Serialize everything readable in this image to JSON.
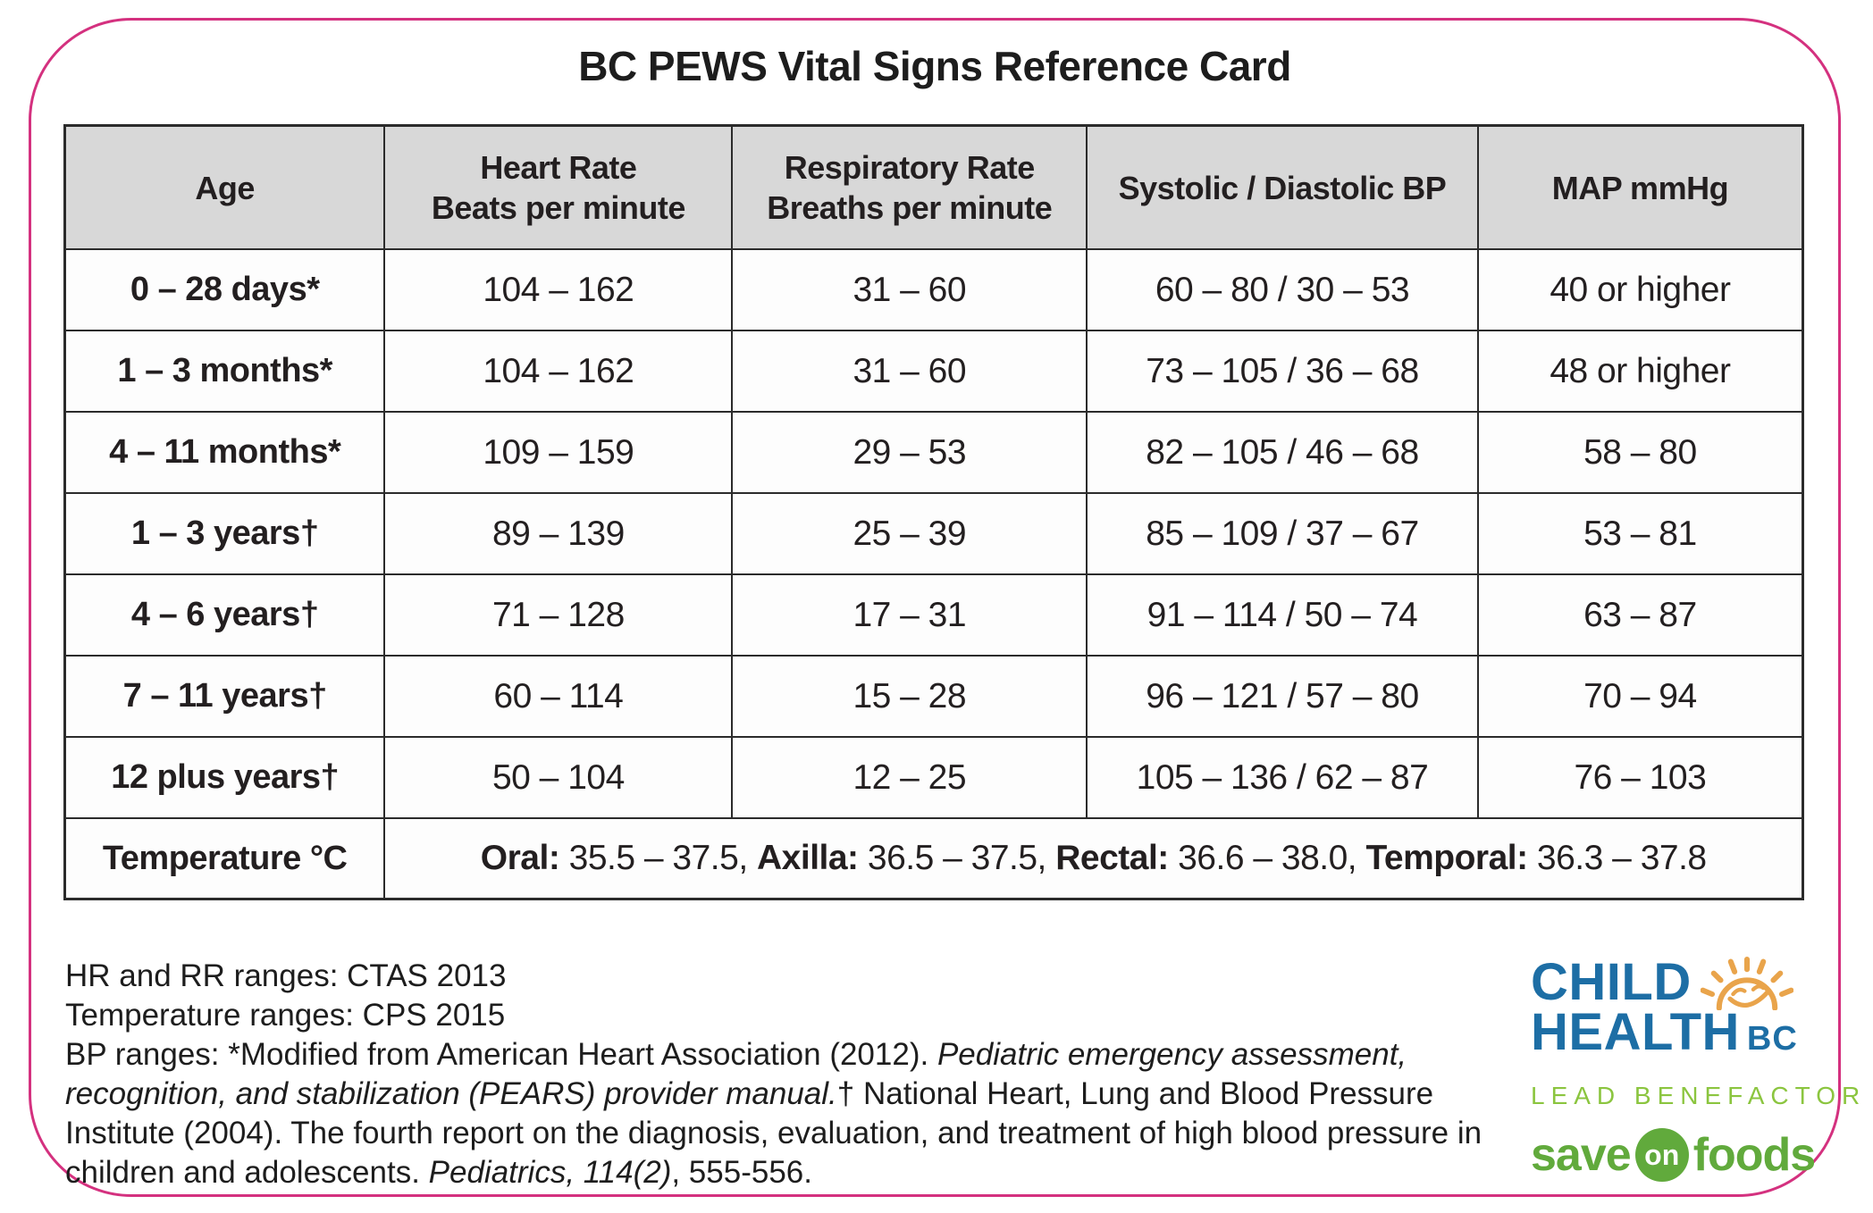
{
  "card": {
    "title": "BC PEWS Vital Signs Reference Card",
    "border_color": "#d4317f",
    "header_bg": "#d8d8d8",
    "grid_color": "#2b2b2b"
  },
  "table": {
    "columns": [
      {
        "line1": "Age"
      },
      {
        "line1": "Heart Rate",
        "line2": "Beats per minute"
      },
      {
        "line1": "Respiratory Rate",
        "line2": "Breaths per minute"
      },
      {
        "line1": "Systolic / Diastolic BP"
      },
      {
        "line1": "MAP mmHg"
      }
    ],
    "rows": [
      {
        "age": "0 – 28 days*",
        "hr": "104 – 162",
        "rr": "31 – 60",
        "bp": "60 – 80 / 30 – 53",
        "map": "40 or higher"
      },
      {
        "age": "1 – 3 months*",
        "hr": "104 – 162",
        "rr": "31 – 60",
        "bp": "73 – 105 / 36 – 68",
        "map": "48 or higher"
      },
      {
        "age": "4 – 11 months*",
        "hr": "109 – 159",
        "rr": "29 – 53",
        "bp": "82 – 105 / 46 – 68",
        "map": "58 – 80"
      },
      {
        "age": "1 – 3 years†",
        "hr": "89 – 139",
        "rr": "25 – 39",
        "bp": "85 – 109 / 37 – 67",
        "map": "53 – 81"
      },
      {
        "age": "4 – 6 years†",
        "hr": "71 – 128",
        "rr": "17 – 31",
        "bp": "91 – 114 / 50 – 74",
        "map": "63 – 87"
      },
      {
        "age": "7 – 11 years†",
        "hr": "60 – 114",
        "rr": "15 – 28",
        "bp": "96 – 121 / 57 – 80",
        "map": "70 – 94"
      },
      {
        "age": "12 plus years†",
        "hr": "50 – 104",
        "rr": "12 – 25",
        "bp": "105 – 136 / 62 – 87",
        "map": "76 – 103"
      }
    ],
    "temperature": {
      "label": "Temperature °C",
      "segments": [
        {
          "text": "Oral: ",
          "bold": true
        },
        {
          "text": "35.5 – 37.5, "
        },
        {
          "text": "Axilla: ",
          "bold": true
        },
        {
          "text": "36.5 – 37.5, "
        },
        {
          "text": "Rectal: ",
          "bold": true
        },
        {
          "text": "36.6 – 38.0, "
        },
        {
          "text": "Temporal: ",
          "bold": true
        },
        {
          "text": "36.3 – 37.8"
        }
      ]
    }
  },
  "footnotes": {
    "line1": "HR and RR ranges: CTAS 2013",
    "line2": "Temperature ranges: CPS 2015",
    "bp_segments": [
      {
        "text": "BP ranges: *Modified from American Heart Association (2012). "
      },
      {
        "text": "Pediatric emergency assessment, recognition, and stabilization (PEARS) provider manual.",
        "italic": true
      },
      {
        "text": "† National Heart, Lung and Blood Pressure Institute (2004). The fourth report on the diagnosis, evaluation, and treatment of high blood pressure in children and adolescents. "
      },
      {
        "text": "Pediatrics, 114(2)",
        "italic": true
      },
      {
        "text": ", 555-556."
      }
    ]
  },
  "logos": {
    "child_line1": "CHILD",
    "child_line2": "HEALTH",
    "child_suffix": "BC",
    "child_blue": "#1d6ea5",
    "sun_orange": "#e9a44b",
    "lead_benefactor": "LEAD BENEFACTOR",
    "benefactor_green": "#8bc53f",
    "sof_save": "save",
    "sof_on": "on",
    "sof_foods": "foods",
    "sof_green": "#61aa3c"
  }
}
